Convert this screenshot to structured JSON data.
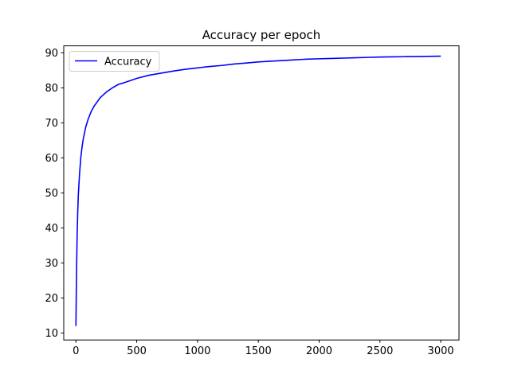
{
  "chart_data": {
    "type": "line",
    "title": "Accuracy per epoch",
    "xlabel": "",
    "ylabel": "",
    "xlim": [
      -100,
      3150
    ],
    "ylim": [
      8,
      92
    ],
    "xticks": [
      0,
      500,
      1000,
      1500,
      2000,
      2500,
      3000
    ],
    "yticks": [
      10,
      20,
      30,
      40,
      50,
      60,
      70,
      80,
      90
    ],
    "grid": false,
    "legend_position": "top-left",
    "series": [
      {
        "name": "Accuracy",
        "color": "#0000ff",
        "x": [
          0,
          5,
          10,
          15,
          20,
          30,
          40,
          50,
          60,
          80,
          100,
          125,
          150,
          200,
          250,
          300,
          350,
          400,
          500,
          600,
          700,
          800,
          900,
          1000,
          1100,
          1200,
          1300,
          1400,
          1500,
          1600,
          1700,
          1800,
          1900,
          2000,
          2100,
          2200,
          2300,
          2400,
          2500,
          2600,
          2700,
          2800,
          2900,
          3000
        ],
        "y": [
          12,
          27,
          38,
          44.5,
          49.5,
          55.5,
          60,
          63,
          65.3,
          68.7,
          71,
          73.2,
          74.8,
          77.2,
          78.8,
          80,
          81,
          81.5,
          82.7,
          83.6,
          84.2,
          84.8,
          85.3,
          85.7,
          86.1,
          86.4,
          86.8,
          87.1,
          87.4,
          87.6,
          87.8,
          88,
          88.2,
          88.3,
          88.4,
          88.5,
          88.6,
          88.7,
          88.8,
          88.85,
          88.9,
          88.95,
          89,
          89.05
        ]
      }
    ]
  }
}
